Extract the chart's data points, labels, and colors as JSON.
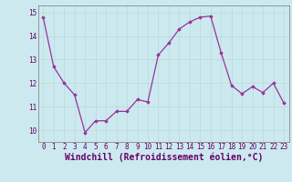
{
  "x": [
    0,
    1,
    2,
    3,
    4,
    5,
    6,
    7,
    8,
    9,
    10,
    11,
    12,
    13,
    14,
    15,
    16,
    17,
    18,
    19,
    20,
    21,
    22,
    23
  ],
  "y": [
    14.8,
    12.7,
    12.0,
    11.5,
    9.9,
    10.4,
    10.4,
    10.8,
    10.8,
    11.3,
    11.2,
    13.2,
    13.7,
    14.3,
    14.6,
    14.8,
    14.85,
    13.3,
    11.9,
    11.55,
    11.85,
    11.6,
    12.0,
    11.15
  ],
  "line_color": "#993399",
  "marker_color": "#993399",
  "bg_color": "#cce9f0",
  "grid_color": "#bbdddd",
  "xlabel": "Windchill (Refroidissement éolien,°C)",
  "ylim": [
    9.5,
    15.3
  ],
  "xlim": [
    -0.5,
    23.5
  ],
  "yticks": [
    10,
    11,
    12,
    13,
    14,
    15
  ],
  "xticks": [
    0,
    1,
    2,
    3,
    4,
    5,
    6,
    7,
    8,
    9,
    10,
    11,
    12,
    13,
    14,
    15,
    16,
    17,
    18,
    19,
    20,
    21,
    22,
    23
  ],
  "tick_label_fontsize": 5.5,
  "xlabel_fontsize": 7.0,
  "line_width": 1.0,
  "marker_size": 2.5
}
